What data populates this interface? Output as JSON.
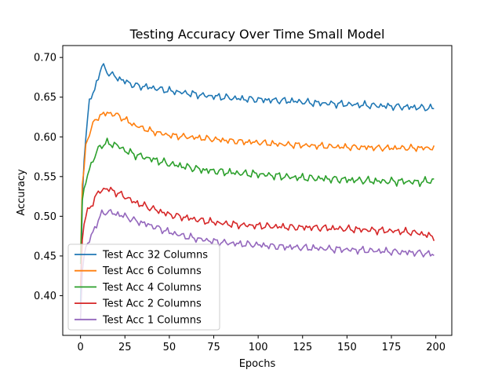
{
  "chart_data": {
    "type": "line",
    "title": "Testing Accuracy Over Time Small Model",
    "xlabel": "Epochs",
    "ylabel": "Accuracy",
    "xlim": [
      -10,
      209
    ],
    "ylim": [
      0.35,
      0.715
    ],
    "xticks": [
      0,
      25,
      50,
      75,
      100,
      125,
      150,
      175,
      200
    ],
    "yticks": [
      0.4,
      0.45,
      0.5,
      0.55,
      0.6,
      0.65,
      0.7
    ],
    "ytick_labels": [
      "0.40",
      "0.45",
      "0.50",
      "0.55",
      "0.60",
      "0.65",
      "0.70"
    ],
    "grid": false,
    "legend_position": "lower-left",
    "anchors_x": [
      0,
      1,
      2,
      3,
      5,
      8,
      10,
      12,
      15,
      20,
      25,
      30,
      40,
      50,
      60,
      70,
      80,
      90,
      100,
      110,
      120,
      130,
      140,
      150,
      160,
      170,
      180,
      190,
      199
    ],
    "series": [
      {
        "name": "Test Acc 32 Columns",
        "color": "#1f77b4",
        "anchors_y": [
          0.385,
          0.52,
          0.57,
          0.6,
          0.645,
          0.66,
          0.675,
          0.69,
          0.682,
          0.675,
          0.67,
          0.665,
          0.662,
          0.658,
          0.655,
          0.652,
          0.65,
          0.648,
          0.647,
          0.646,
          0.645,
          0.643,
          0.642,
          0.641,
          0.64,
          0.639,
          0.638,
          0.637,
          0.636
        ],
        "noise": 0.005
      },
      {
        "name": "Test Acc 6 Columns",
        "color": "#ff7f0e",
        "anchors_y": [
          0.445,
          0.54,
          0.56,
          0.59,
          0.605,
          0.62,
          0.625,
          0.628,
          0.63,
          0.628,
          0.622,
          0.615,
          0.607,
          0.602,
          0.6,
          0.598,
          0.596,
          0.594,
          0.593,
          0.591,
          0.59,
          0.589,
          0.588,
          0.587,
          0.587,
          0.586,
          0.586,
          0.586,
          0.586
        ],
        "noise": 0.0045
      },
      {
        "name": "Test Acc 4 Columns",
        "color": "#2ca02c",
        "anchors_y": [
          0.44,
          0.52,
          0.535,
          0.545,
          0.56,
          0.575,
          0.585,
          0.59,
          0.592,
          0.59,
          0.583,
          0.578,
          0.572,
          0.566,
          0.562,
          0.558,
          0.556,
          0.554,
          0.553,
          0.551,
          0.549,
          0.548,
          0.547,
          0.546,
          0.545,
          0.544,
          0.544,
          0.543,
          0.545
        ],
        "noise": 0.0055
      },
      {
        "name": "Test Acc 2 Columns",
        "color": "#d62728",
        "anchors_y": [
          0.41,
          0.47,
          0.49,
          0.5,
          0.51,
          0.522,
          0.53,
          0.533,
          0.535,
          0.53,
          0.525,
          0.518,
          0.51,
          0.502,
          0.498,
          0.494,
          0.491,
          0.489,
          0.488,
          0.487,
          0.486,
          0.486,
          0.485,
          0.484,
          0.483,
          0.482,
          0.481,
          0.479,
          0.474
        ],
        "noise": 0.005
      },
      {
        "name": "Test Acc 1 Columns",
        "color": "#9467bd",
        "anchors_y": [
          0.37,
          0.43,
          0.45,
          0.46,
          0.47,
          0.485,
          0.495,
          0.503,
          0.506,
          0.503,
          0.5,
          0.495,
          0.488,
          0.48,
          0.474,
          0.47,
          0.467,
          0.465,
          0.464,
          0.462,
          0.461,
          0.46,
          0.459,
          0.458,
          0.457,
          0.456,
          0.455,
          0.454,
          0.452
        ],
        "noise": 0.005
      }
    ]
  }
}
